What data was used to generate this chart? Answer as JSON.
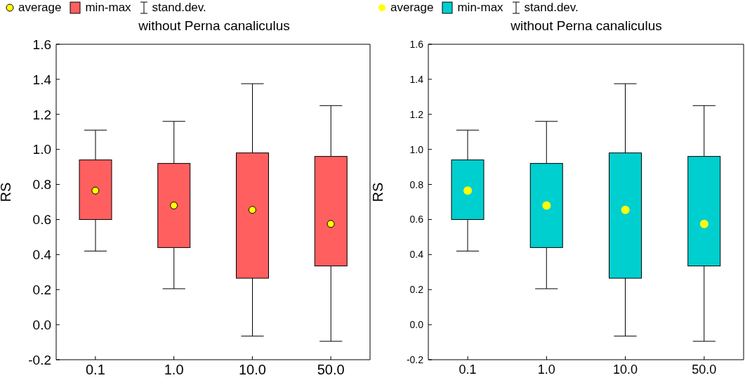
{
  "chart_data": [
    {
      "type": "box",
      "title": "without Perna canaliculus",
      "ylabel": "RS",
      "categories": [
        "0.1",
        "1.0",
        "10.0",
        "50.0"
      ],
      "ylim": [
        -0.2,
        1.6
      ],
      "yticks": [
        {
          "value": -0.2,
          "label": "-0.2"
        },
        {
          "value": 0,
          "label": "0.0"
        },
        0.2,
        0.4,
        0.6,
        0.8,
        {
          "value": 1,
          "label": "1.0"
        },
        1.2,
        1.4,
        1.6
      ],
      "legend": "top left",
      "grid": false,
      "annotations": [
        "stand.dev."
      ],
      "series": [
        {
          "name": "min-max",
          "color": "#ff5f5f",
          "boxes": [
            {
              "low": 0.42,
              "q1": 0.6,
              "q3": 0.94,
              "high": 1.11
            },
            {
              "low": 0.205,
              "q1": 0.44,
              "q3": 0.92,
              "high": 1.16
            },
            {
              "low": -0.065,
              "q1": 0.265,
              "q3": 0.98,
              "high": 1.375
            },
            {
              "low": -0.095,
              "q1": 0.335,
              "q3": 0.96,
              "high": 1.25
            }
          ]
        },
        {
          "type": "scatter",
          "name": "average",
          "color": "#ffff00",
          "x": [
            "0.1",
            "1.0",
            "10.0",
            "50.0"
          ],
          "values": [
            0.765,
            0.68,
            0.655,
            0.575
          ]
        }
      ]
    },
    {
      "type": "box",
      "title": "without Perna canaliculus",
      "ylabel": "RS",
      "categories": [
        "0.1",
        "1.0",
        "10.0",
        "50.0"
      ],
      "ylim": [
        -0.2,
        1.6
      ],
      "yticks": [
        {
          "value": -0.2,
          "label": "-0.2"
        },
        {
          "value": 0,
          "label": "0.0"
        },
        0.2,
        0.4,
        0.6,
        0.8,
        {
          "value": 1,
          "label": "1.0"
        },
        1.2,
        1.4,
        1.6
      ],
      "legend": "top left",
      "grid": false,
      "annotations": [
        "stand.dev."
      ],
      "series": [
        {
          "name": "min-max",
          "color": "#00cfcf",
          "boxes": [
            {
              "low": 0.42,
              "q1": 0.6,
              "q3": 0.94,
              "high": 1.11
            },
            {
              "low": 0.205,
              "q1": 0.44,
              "q3": 0.92,
              "high": 1.16
            },
            {
              "low": -0.065,
              "q1": 0.265,
              "q3": 0.98,
              "high": 1.375
            },
            {
              "low": -0.095,
              "q1": 0.335,
              "q3": 0.96,
              "high": 1.25
            }
          ]
        },
        {
          "type": "scatter",
          "name": "average",
          "color": "#ffff00",
          "x": [
            "0.1",
            "1.0",
            "10.0",
            "50.0"
          ],
          "values": [
            0.765,
            0.68,
            0.655,
            0.575
          ]
        }
      ]
    }
  ]
}
